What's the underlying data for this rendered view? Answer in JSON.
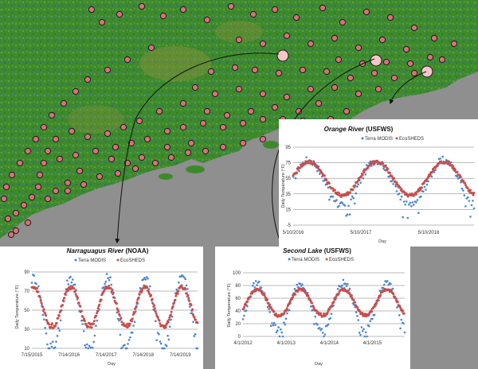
{
  "colors": {
    "terra": "#4a86cf",
    "ecosheds": "#c5504f",
    "site_fill": "#d9707a",
    "site_stroke": "#1a1a1a",
    "highlight_fill": "#f6c5c7",
    "land": "#3d8a2b",
    "water": "#3a6fa3"
  },
  "map": {
    "icon": "site-marker-icon",
    "background": "gray-ocean"
  },
  "charts": [
    {
      "key": "orange",
      "title_name": "Orange River",
      "title_org": "(USFWS)",
      "legend": [
        "Terra MODIS",
        "EcoSHEDS"
      ],
      "ylabel": "Daily Temperature (°F)",
      "xlabel": "Day"
    },
    {
      "key": "narraguagus",
      "title_name": "Narraguagus River",
      "title_org": "(NOAA)",
      "legend": [
        "Terra MODIS",
        "EcoSHEDS"
      ],
      "ylabel": "Daily Temperature (°F)",
      "xlabel": "Day"
    },
    {
      "key": "second",
      "title_name": "Second Lake",
      "title_org": "(USFWS)",
      "legend": [
        "Terra MODIS",
        "EcoSHEDS"
      ],
      "ylabel": "Daily Temperature (°F)",
      "xlabel": "Day"
    }
  ],
  "chart_data": [
    {
      "type": "scatter",
      "title": "Orange River (USFWS)",
      "xlabel": "Day",
      "ylabel": "Daily Temperature (°F)",
      "ylim": [
        -5,
        95
      ],
      "yticks": [
        -5,
        15,
        35,
        55,
        75,
        95
      ],
      "xticks": [
        "5/10/2016",
        "5/10/2017",
        "5/10/2018"
      ],
      "x_start": "2016-05-10",
      "x_end": "2019-01-10",
      "series": [
        {
          "name": "Terra MODIS",
          "seasonal": {
            "min": 20,
            "max": 78
          },
          "peak_dates": [
            "2016-08-01",
            "2017-08-01",
            "2018-08-01"
          ]
        },
        {
          "name": "EcoSHEDS",
          "seasonal": {
            "min": 33,
            "max": 76
          },
          "peak_dates": [
            "2016-08-01",
            "2017-08-01",
            "2018-08-01"
          ]
        }
      ],
      "legend": "top"
    },
    {
      "type": "scatter",
      "title": "Narraguagus River (NOAA)",
      "xlabel": "Day",
      "ylabel": "Daily Temperature (°F)",
      "ylim": [
        10,
        90
      ],
      "yticks": [
        10,
        30,
        50,
        70,
        90
      ],
      "xticks": [
        "7/15/2015",
        "7/14/2016",
        "7/14/2017",
        "7/14/2018",
        "7/14/2019"
      ],
      "x_start": "2015-07-15",
      "x_end": "2019-12-31",
      "series": [
        {
          "name": "Terra MODIS",
          "seasonal": {
            "min": 12,
            "max": 84
          },
          "peak_dates": [
            "2015-08-01",
            "2016-08-01",
            "2017-08-01",
            "2018-08-01",
            "2019-08-01"
          ]
        },
        {
          "name": "EcoSHEDS",
          "seasonal": {
            "min": 32,
            "max": 74
          },
          "peak_dates": [
            "2015-08-01",
            "2016-08-01",
            "2017-08-01",
            "2018-08-01",
            "2019-08-01"
          ]
        }
      ],
      "legend": "top"
    },
    {
      "type": "scatter",
      "title": "Second Lake (USFWS)",
      "xlabel": "Day",
      "ylabel": "Daily Temperature (°F)",
      "ylim": [
        0,
        100
      ],
      "yticks": [
        0,
        20,
        40,
        60,
        80,
        100
      ],
      "xticks": [
        "4/1/2012",
        "4/1/2013",
        "4/1/2014",
        "4/1/2015"
      ],
      "x_start": "2012-04-01",
      "x_end": "2015-12-31",
      "series": [
        {
          "name": "Terra MODIS",
          "seasonal": {
            "min": 10,
            "max": 84
          },
          "peak_dates": [
            "2012-08-01",
            "2013-08-01",
            "2014-08-01",
            "2015-08-01"
          ]
        },
        {
          "name": "EcoSHEDS",
          "seasonal": {
            "min": 32,
            "max": 74
          },
          "peak_dates": [
            "2012-08-01",
            "2013-08-01",
            "2014-08-01",
            "2015-08-01"
          ]
        }
      ],
      "legend": "top"
    }
  ]
}
